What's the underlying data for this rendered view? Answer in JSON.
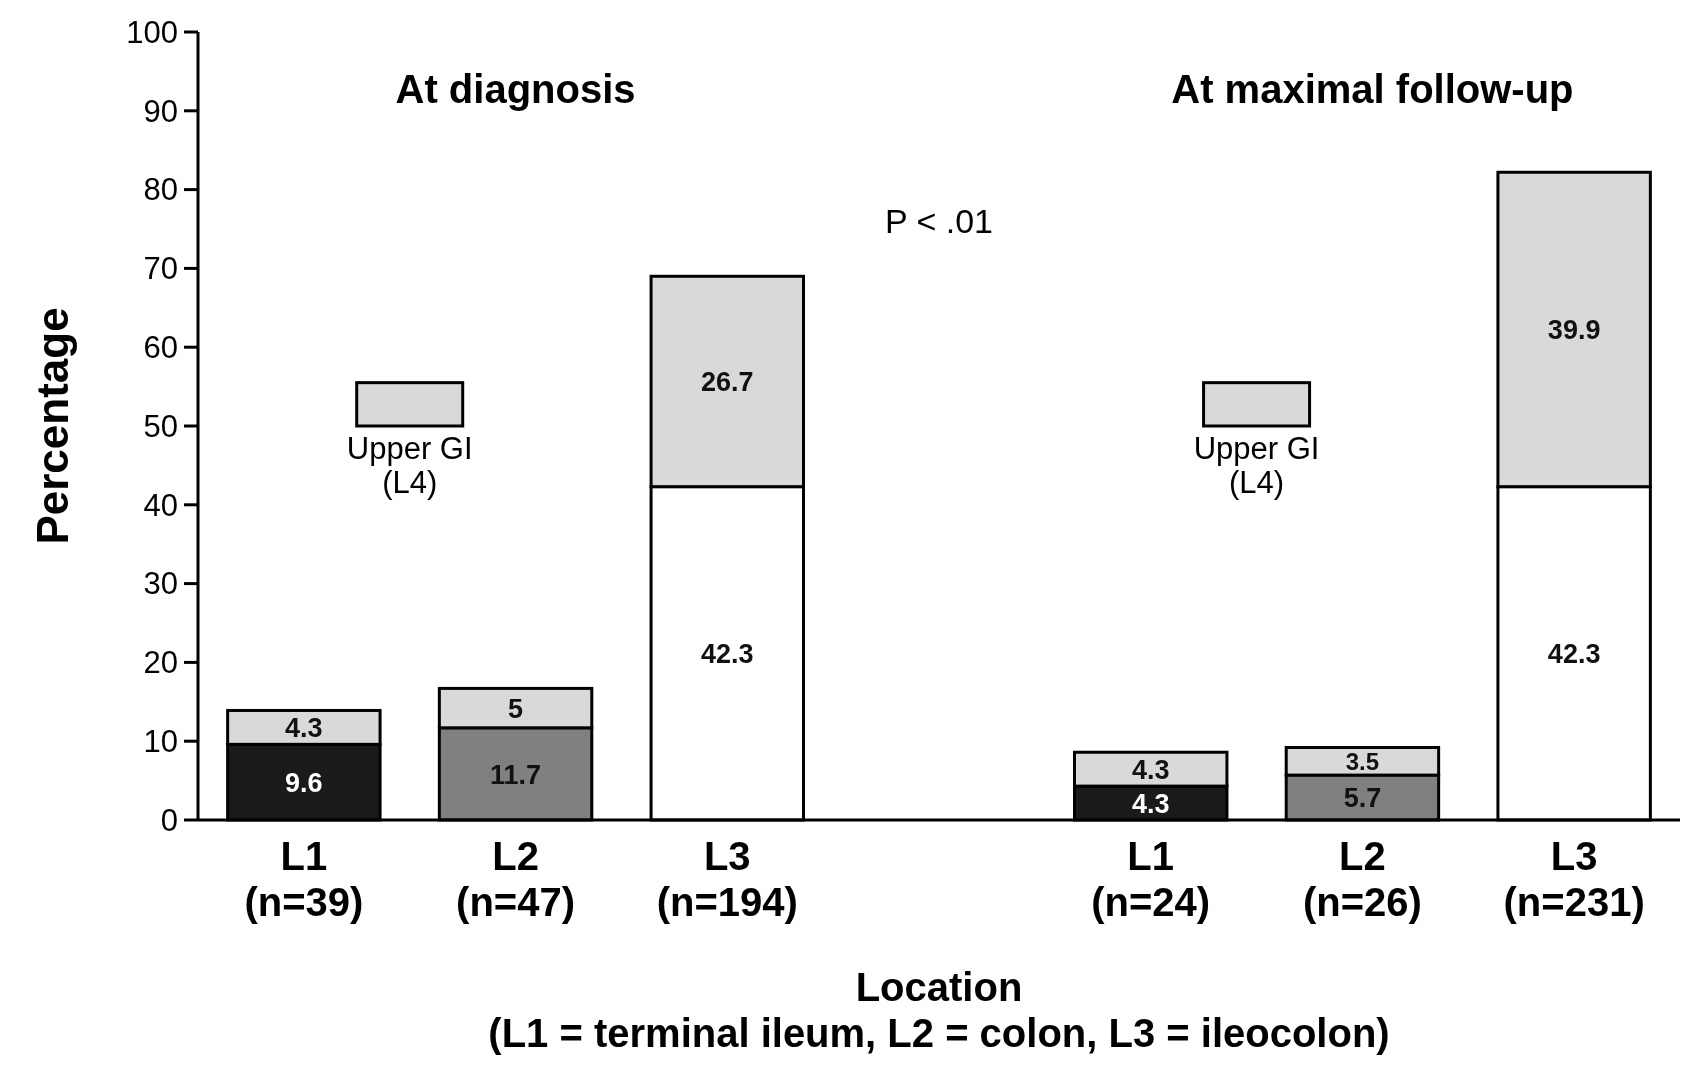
{
  "chart_data": {
    "type": "bar",
    "stacked": true,
    "ylabel": "Percentage",
    "xlabel": "Location\n(L1 = terminal ileum, L2 = colon, L3 = ileocolon)",
    "categories": [
      "L1\n(n=39)",
      "L2\n(n=47)",
      "L3\n(n=194)",
      null,
      "L1\n(n=24)",
      "L2\n(n=26)",
      "L3\n(n=231)"
    ],
    "series": [
      {
        "colors": [
          "#1a1a1a",
          "#808080",
          "#ffffff",
          null,
          "#1a1a1a",
          "#808080",
          "#ffffff"
        ],
        "values": [
          9.6,
          11.7,
          42.3,
          null,
          4.3,
          5.7,
          42.3
        ]
      },
      {
        "name": "Upper GI\n(L4)",
        "color": "#d9d9d9",
        "values": [
          4.3,
          5,
          26.7,
          null,
          4.3,
          3.5,
          39.9
        ]
      }
    ],
    "ylim": [
      0,
      100
    ],
    "yticks": [
      0,
      10,
      20,
      30,
      40,
      50,
      60,
      70,
      80,
      90,
      100
    ],
    "data_labels": true,
    "legend": "left",
    "grid": false,
    "annotations": [
      "At diagnosis",
      "At maximal follow-up",
      "P < .01"
    ]
  }
}
